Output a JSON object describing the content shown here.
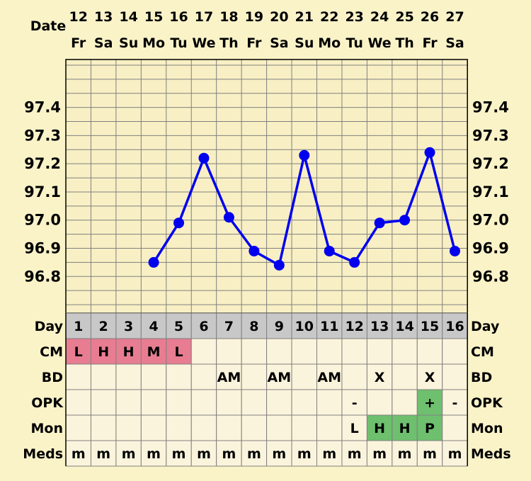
{
  "chart_data": {
    "type": "line",
    "header": {
      "date_label": "Date",
      "day_label": "Day"
    },
    "dates": [
      "12",
      "13",
      "14",
      "15",
      "16",
      "17",
      "18",
      "19",
      "20",
      "21",
      "22",
      "23",
      "24",
      "25",
      "26",
      "27"
    ],
    "weekdays": [
      "Fr",
      "Sa",
      "Su",
      "Mo",
      "Tu",
      "We",
      "Th",
      "Fr",
      "Sa",
      "Su",
      "Mo",
      "Tu",
      "We",
      "Th",
      "Fr",
      "Sa"
    ],
    "cycle_days": [
      "1",
      "2",
      "3",
      "4",
      "5",
      "6",
      "7",
      "8",
      "9",
      "10",
      "11",
      "12",
      "13",
      "14",
      "15",
      "16"
    ],
    "yticks": [
      "97.4",
      "97.3",
      "97.2",
      "97.1",
      "97.0",
      "96.9",
      "96.8"
    ],
    "ylim": [
      96.67,
      97.57
    ],
    "series": [
      {
        "values": [
          null,
          null,
          null,
          96.85,
          96.99,
          97.22,
          97.01,
          96.89,
          96.84,
          97.23,
          96.89,
          96.85,
          96.99,
          97.0,
          97.24,
          96.89
        ]
      }
    ],
    "rows": [
      {
        "label": "CM",
        "cells": [
          "L",
          "H",
          "H",
          "M",
          "L",
          "",
          "",
          "",
          "",
          "",
          "",
          "",
          "",
          "",
          "",
          ""
        ]
      },
      {
        "label": "BD",
        "cells": [
          "",
          "",
          "",
          "",
          "",
          "",
          "AM",
          "",
          "AM",
          "",
          "AM",
          "",
          "X",
          "",
          "X",
          ""
        ]
      },
      {
        "label": "OPK",
        "cells": [
          "",
          "",
          "",
          "",
          "",
          "",
          "",
          "",
          "",
          "",
          "",
          "-",
          "",
          "",
          "+",
          "-"
        ]
      },
      {
        "label": "Mon",
        "cells": [
          "",
          "",
          "",
          "",
          "",
          "",
          "",
          "",
          "",
          "",
          "",
          "L",
          "H",
          "H",
          "P",
          ""
        ]
      },
      {
        "label": "Meds",
        "cells": [
          "m",
          "m",
          "m",
          "m",
          "m",
          "m",
          "m",
          "m",
          "m",
          "m",
          "m",
          "m",
          "m",
          "m",
          "m",
          "m"
        ]
      }
    ]
  },
  "colors": {
    "background": "#FAF3C8",
    "plot_bg": "#F8EFC4",
    "grid": "#808080",
    "line": "#0000EE",
    "day_row_bg": "#C8C8C8",
    "cm_bg": "#E87D92",
    "fertile_bg": "#6EBF6E",
    "table_bg": "#FBF4DC"
  }
}
